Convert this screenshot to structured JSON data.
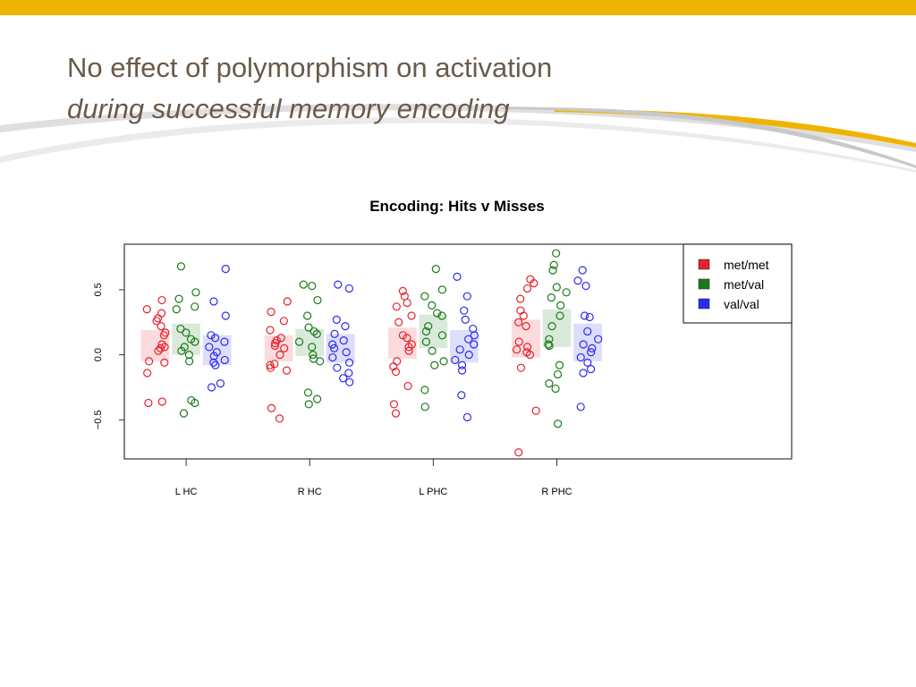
{
  "slide": {
    "title": "No effect of polymorphism on activation",
    "subtitle": "during successful memory encoding"
  },
  "colors": {
    "accent": "#f0b400",
    "title_text": "#6a5a4a",
    "series": {
      "met/met": "#e8202a",
      "met/val": "#1a7a1a",
      "val/val": "#2b2bef"
    }
  },
  "chart_data": {
    "type": "scatter",
    "title": "Encoding: Hits v Misses",
    "xlabel": "",
    "ylabel": "",
    "categories": [
      "L HC",
      "R HC",
      "L PHC",
      "R PHC"
    ],
    "ylim": [
      -0.8,
      0.85
    ],
    "xlim": [
      0.5,
      5.9
    ],
    "yticks": [
      -0.5,
      0.0,
      0.5
    ],
    "ytick_labels": [
      "−0.5",
      "0.0",
      "0.5"
    ],
    "grid": false,
    "legend_position": "top-right",
    "series": [
      {
        "name": "met/met",
        "color": "#e8202a",
        "ranges": [
          [
            -0.05,
            0.19
          ],
          [
            -0.05,
            0.15
          ],
          [
            -0.03,
            0.21
          ],
          [
            -0.02,
            0.27
          ]
        ],
        "values": [
          [
            0.42,
            0.35,
            0.32,
            0.28,
            0.22,
            0.26,
            0.17,
            0.15,
            0.08,
            0.06,
            0.05,
            0.03,
            -0.05,
            -0.06,
            -0.14,
            -0.36,
            -0.37
          ],
          [
            0.41,
            0.33,
            0.26,
            0.19,
            0.13,
            0.11,
            0.09,
            0.07,
            0.05,
            0.0,
            -0.07,
            -0.08,
            -0.1,
            -0.12,
            -0.41,
            -0.49
          ],
          [
            0.49,
            0.45,
            0.4,
            0.37,
            0.3,
            0.25,
            0.15,
            0.13,
            0.08,
            0.06,
            0.03,
            -0.05,
            -0.09,
            -0.13,
            -0.24,
            -0.38,
            -0.45
          ],
          [
            0.58,
            0.55,
            0.51,
            0.43,
            0.34,
            0.3,
            0.25,
            0.22,
            0.1,
            0.06,
            0.04,
            0.02,
            0.0,
            -0.1,
            -0.43,
            -0.75
          ]
        ]
      },
      {
        "name": "met/val",
        "color": "#1a7a1a",
        "ranges": [
          [
            0.0,
            0.24
          ],
          [
            -0.01,
            0.2
          ],
          [
            0.05,
            0.31
          ],
          [
            0.06,
            0.35
          ]
        ],
        "values": [
          [
            0.68,
            0.48,
            0.43,
            0.37,
            0.35,
            0.2,
            0.17,
            0.12,
            0.1,
            0.06,
            0.03,
            0.0,
            -0.05,
            -0.35,
            -0.37,
            -0.45
          ],
          [
            0.54,
            0.53,
            0.42,
            0.3,
            0.21,
            0.18,
            0.16,
            0.1,
            0.06,
            0.0,
            -0.03,
            -0.05,
            -0.29,
            -0.34,
            -0.38
          ],
          [
            0.66,
            0.5,
            0.45,
            0.38,
            0.32,
            0.3,
            0.22,
            0.18,
            0.15,
            0.1,
            0.03,
            -0.05,
            -0.08,
            -0.27,
            -0.4
          ],
          [
            0.78,
            0.69,
            0.65,
            0.52,
            0.48,
            0.44,
            0.38,
            0.3,
            0.22,
            0.12,
            0.08,
            0.07,
            -0.08,
            -0.15,
            -0.22,
            -0.26,
            -0.53
          ]
        ]
      },
      {
        "name": "val/val",
        "color": "#2b2bef",
        "ranges": [
          [
            -0.08,
            0.15
          ],
          [
            -0.06,
            0.16
          ],
          [
            -0.06,
            0.19
          ],
          [
            -0.05,
            0.24
          ]
        ],
        "values": [
          [
            0.66,
            0.41,
            0.3,
            0.15,
            0.13,
            0.1,
            0.06,
            0.02,
            -0.01,
            -0.04,
            -0.06,
            -0.08,
            -0.22,
            -0.25
          ],
          [
            0.54,
            0.51,
            0.27,
            0.22,
            0.16,
            0.11,
            0.08,
            0.05,
            0.02,
            -0.02,
            -0.06,
            -0.1,
            -0.14,
            -0.18,
            -0.21
          ],
          [
            0.6,
            0.45,
            0.34,
            0.27,
            0.2,
            0.15,
            0.12,
            0.08,
            0.04,
            0.0,
            -0.04,
            -0.08,
            -0.12,
            -0.31,
            -0.48
          ],
          [
            0.65,
            0.57,
            0.53,
            0.3,
            0.29,
            0.18,
            0.12,
            0.08,
            0.05,
            0.02,
            -0.02,
            -0.06,
            -0.11,
            -0.14,
            -0.4
          ]
        ]
      }
    ]
  }
}
